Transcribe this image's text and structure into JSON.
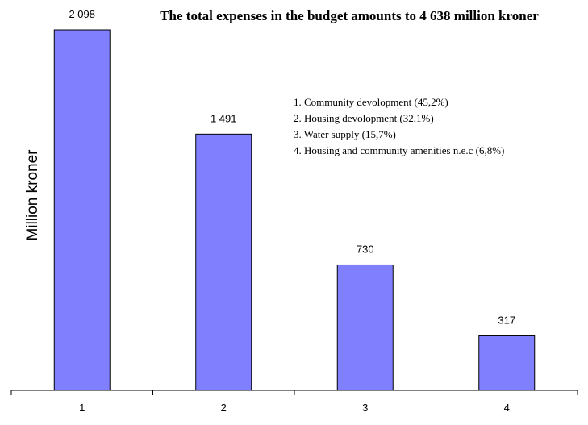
{
  "chart_data": {
    "type": "bar",
    "title": "The total expenses in the budget amounts to 4 638 million kroner",
    "xlabel": "",
    "ylabel": "Million kroner",
    "categories": [
      "1",
      "2",
      "3",
      "4"
    ],
    "values": [
      2098,
      1491,
      730,
      317
    ],
    "data_labels": [
      "2 098",
      "1 491",
      "730",
      "317"
    ],
    "ylim": [
      0,
      2098
    ],
    "grid": false,
    "legend_position": "top-right",
    "legend_items": [
      "1. Community devolopment (45,2%)",
      "2. Housing devolopment (32,1%)",
      "3. Water supply (15,7%)",
      "4. Housing and community amenities n.e.c (6,8%)"
    ],
    "colors": {
      "bar_fill": "#8080ff",
      "bar_stroke": "#000000",
      "axis": "#000000"
    }
  }
}
